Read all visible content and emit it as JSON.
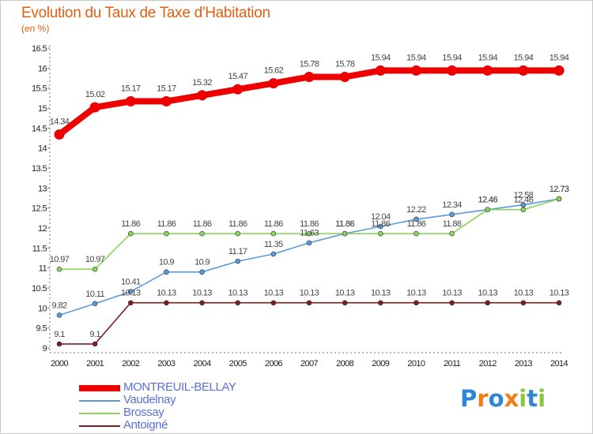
{
  "title": "Evolution du Taux de Taxe d'Habitation",
  "subtitle": "(en %)",
  "logo": {
    "letters": [
      "P",
      "r",
      "o",
      "x",
      "i",
      "t",
      "i"
    ],
    "colors": [
      "#2e86d8",
      "#f07d1a",
      "#2e86d8",
      "#f07d1a",
      "#8cc63f",
      "#2e86d8",
      "#8cc63f"
    ]
  },
  "chart_data": {
    "type": "line",
    "x": [
      2000,
      2001,
      2002,
      2003,
      2004,
      2005,
      2006,
      2007,
      2008,
      2009,
      2010,
      2011,
      2012,
      2013,
      2014
    ],
    "ylim": [
      9,
      16.5
    ],
    "yticks": [
      "9",
      "9.5",
      "10",
      "10.5",
      "11",
      "11.5",
      "12",
      "12.5",
      "13",
      "13.5",
      "14",
      "14.5",
      "15",
      "15.5",
      "16",
      "16.5"
    ],
    "grid": false,
    "legend": "bottom-left",
    "series": [
      {
        "name": "MONTREUIL-BELLAY",
        "color": "#ee0000",
        "values": [
          14.34,
          15.02,
          15.17,
          15.17,
          15.32,
          15.47,
          15.62,
          15.78,
          15.78,
          15.94,
          15.94,
          15.94,
          15.94,
          15.94,
          15.94
        ],
        "labels": [
          "14.34",
          "15.02",
          "15.17",
          "15.17",
          "15.32",
          "15.47",
          "15.62",
          "15.78",
          "15.78",
          "15.94",
          "15.94",
          "15.94",
          "15.94",
          "15.94",
          "15.94"
        ]
      },
      {
        "name": "Vaudelnay",
        "color": "#5b9bd5",
        "values": [
          9.82,
          10.11,
          10.41,
          10.9,
          10.9,
          11.17,
          11.35,
          11.63,
          11.86,
          12.04,
          12.22,
          12.34,
          12.46,
          12.58,
          12.73
        ],
        "labels": [
          "9.82",
          "10.11",
          "10.41",
          "10.9",
          "10.9",
          "11.17",
          "11.35",
          "11.63",
          "11.86",
          "12.04",
          "12.22",
          "12.34",
          "12.46",
          "12.58",
          "12.73"
        ]
      },
      {
        "name": "Brossay",
        "color": "#8bd55a",
        "values": [
          10.97,
          10.97,
          11.86,
          11.86,
          11.86,
          11.86,
          11.86,
          11.86,
          11.86,
          11.86,
          11.86,
          11.86,
          12.46,
          12.46,
          12.73
        ],
        "labels": [
          "10.97",
          "10.97",
          "11.86",
          "11.86",
          "11.86",
          "11.86",
          "11.86",
          "11.86",
          "11.86",
          "11.86",
          "11.86",
          "11.86",
          "12.46",
          "12.46",
          "12.73"
        ]
      },
      {
        "name": "Antoigné",
        "color": "#7b1f24",
        "values": [
          9.1,
          9.1,
          10.13,
          10.13,
          10.13,
          10.13,
          10.13,
          10.13,
          10.13,
          10.13,
          10.13,
          10.13,
          10.13,
          10.13,
          10.13
        ],
        "labels": [
          "9.1",
          "9.1",
          "10.13",
          "10.13",
          "10.13",
          "10.13",
          "10.13",
          "10.13",
          "10.13",
          "10.13",
          "10.13",
          "10.13",
          "10.13",
          "10.13",
          "10.13"
        ]
      }
    ]
  }
}
